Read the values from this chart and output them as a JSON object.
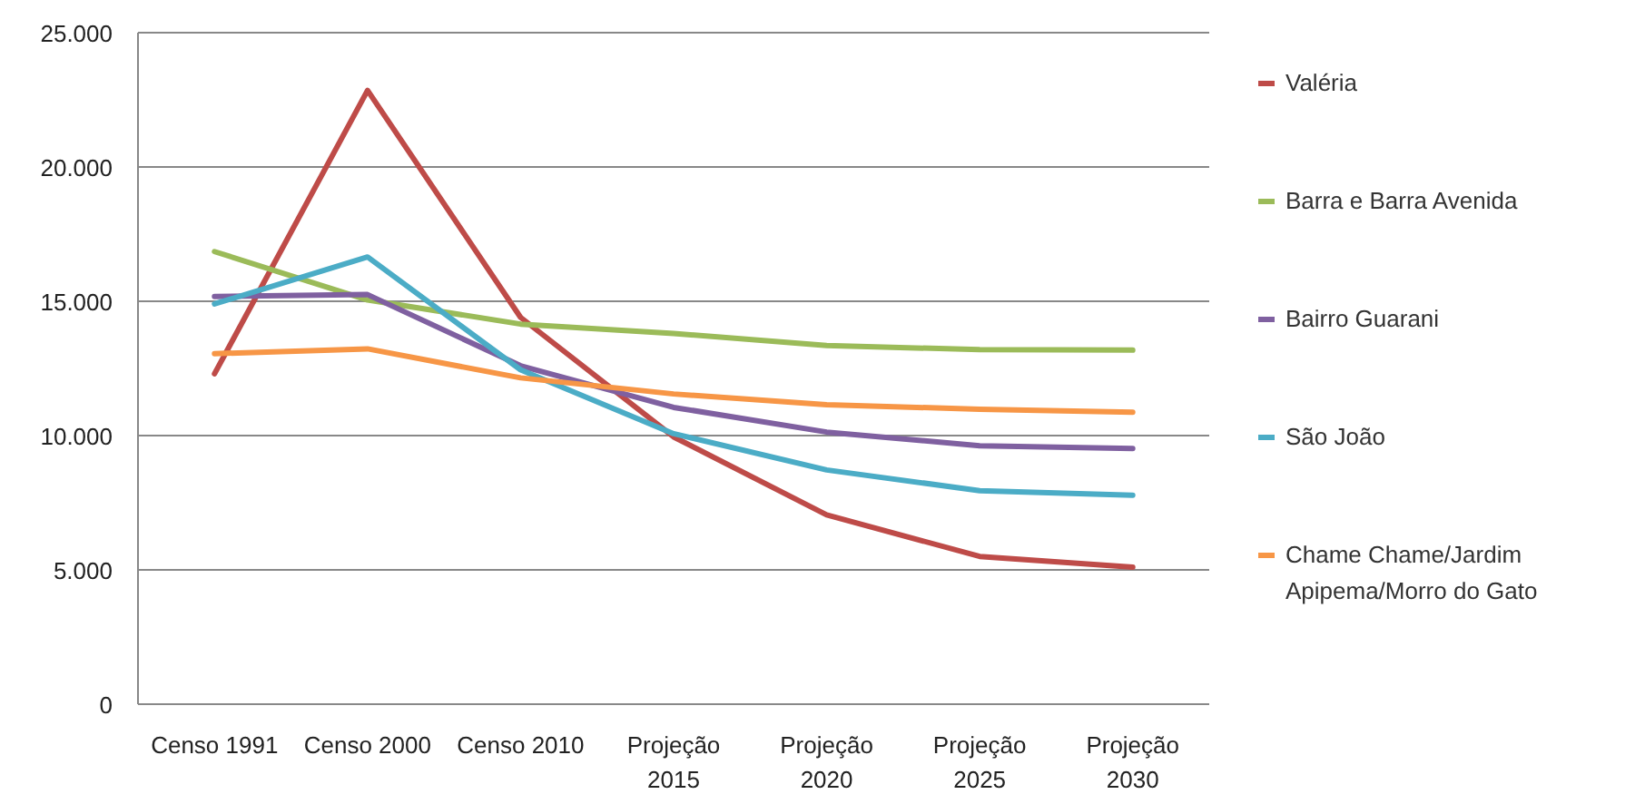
{
  "chart_data": {
    "type": "line",
    "categories": [
      "Censo 1991",
      "Censo 2000",
      "Censo 2010",
      "Projeção 2015",
      "Projeção 2020",
      "Projeção 2025",
      "Projeção 2030"
    ],
    "series": [
      {
        "name": "Valéria",
        "color": "#be4b48",
        "values": [
          12300,
          22850,
          14400,
          9950,
          7050,
          5500,
          5100
        ]
      },
      {
        "name": "Barra e Barra Avenida",
        "color": "#9bbb59",
        "values": [
          16850,
          15050,
          14150,
          13800,
          13350,
          13200,
          13180
        ]
      },
      {
        "name": "Bairro Guarani",
        "color": "#7f60a0",
        "values": [
          15180,
          15250,
          12600,
          11050,
          10130,
          9620,
          9520
        ]
      },
      {
        "name": "São João",
        "color": "#4bacc6",
        "values": [
          14900,
          16650,
          12450,
          10070,
          8720,
          7950,
          7780
        ]
      },
      {
        "name": "Chame Chame/Jardim Apipema/Morro do Gato",
        "color": "#f79646",
        "values": [
          13050,
          13230,
          12150,
          11550,
          11150,
          10980,
          10870
        ]
      }
    ],
    "ylim": [
      0,
      25000
    ],
    "yticks": [
      {
        "value": 0,
        "label": "0"
      },
      {
        "value": 5000,
        "label": "5.000"
      },
      {
        "value": 10000,
        "label": "10.000"
      },
      {
        "value": 15000,
        "label": "15.000"
      },
      {
        "value": 20000,
        "label": "20.000"
      },
      {
        "value": 25000,
        "label": "25.000"
      }
    ],
    "grid": "y",
    "legend": "right",
    "marker": "none",
    "line_style": "solid"
  }
}
